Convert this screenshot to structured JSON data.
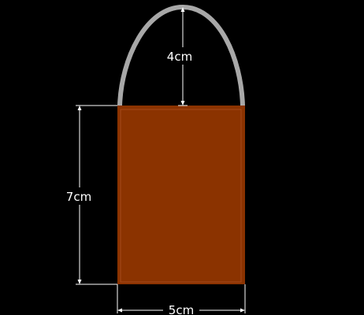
{
  "colors": {
    "background": "#000000",
    "bag_body": "#8b3300",
    "bag_edge": "#a64a1c",
    "handle": "#a8a8a8",
    "dimension": "#ffffff"
  },
  "dimensions": {
    "handle_height": "4cm",
    "body_height": "7cm",
    "body_width": "5cm"
  }
}
